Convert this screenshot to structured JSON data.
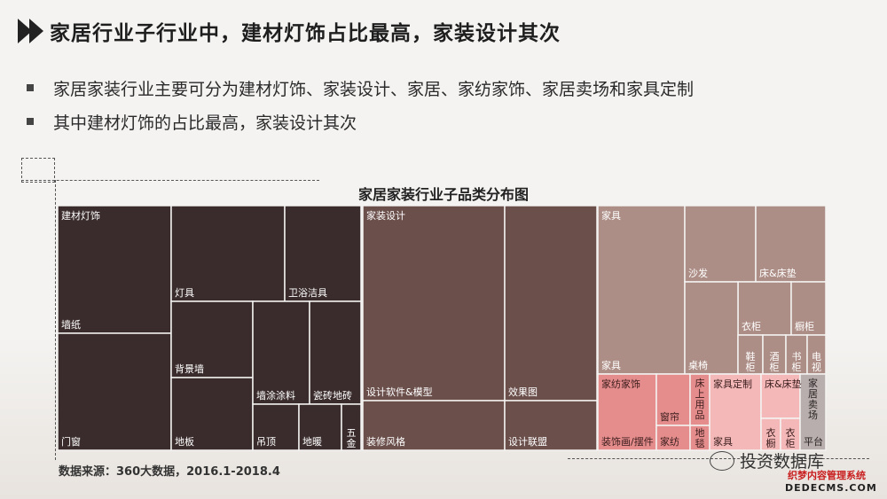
{
  "header": {
    "title": "家居行业子行业中，建材灯饰占比最高，家装设计其次"
  },
  "bullets": [
    "家居家装行业主要可分为建材灯饰、家装设计、家居、家纺家饰、家居卖场和家具定制",
    "其中建材灯饰的占比最高，家装设计其次"
  ],
  "source": "数据来源：360大数据，2016.1-2018.4",
  "watermark": {
    "brand": "投资数据库",
    "site_cn": "织梦内容管理系统",
    "site_en": "DEDECMS.COM"
  },
  "chart_data": {
    "type": "treemap",
    "title": "家居家装行业子品类分布图",
    "groups": [
      {
        "name": "建材灯饰",
        "color": "#3a2c2c",
        "labelColor": "#ffffff",
        "items": [
          "墙纸",
          "门窗",
          "灯具",
          "卫浴洁具",
          "背景墙",
          "地板",
          "墙涂涂料",
          "瓷砖地砖",
          "吊顶",
          "地暖",
          "五金"
        ]
      },
      {
        "name": "家装设计",
        "color": "#6b4f4b",
        "labelColor": "#ffffff",
        "items": [
          "设计软件&模型",
          "装修风格",
          "效果图",
          "设计联盟"
        ]
      },
      {
        "name": "家具",
        "color": "#ad8e86",
        "labelColor": "#ffffff",
        "items": [
          "家具",
          "沙发",
          "床&床垫",
          "衣柜",
          "橱柜",
          "桌椅",
          "鞋柜",
          "酒柜",
          "书柜",
          "电视"
        ]
      },
      {
        "name": "家纺家饰",
        "color": "#e58c8c",
        "labelColor": "#3a1c1c",
        "items": [
          "装饰画/摆件",
          "窗帘",
          "床上用品",
          "家纺",
          "地毯"
        ]
      },
      {
        "name": "家具定制",
        "color": "#f4b8b8",
        "labelColor": "#3a1c1c",
        "items": [
          "家具",
          "床&床垫",
          "衣橱",
          "衣柜"
        ]
      },
      {
        "name": "家居卖场",
        "color": "#b9aeae",
        "labelColor": "#2a2424",
        "items": [
          "平台"
        ]
      }
    ]
  }
}
